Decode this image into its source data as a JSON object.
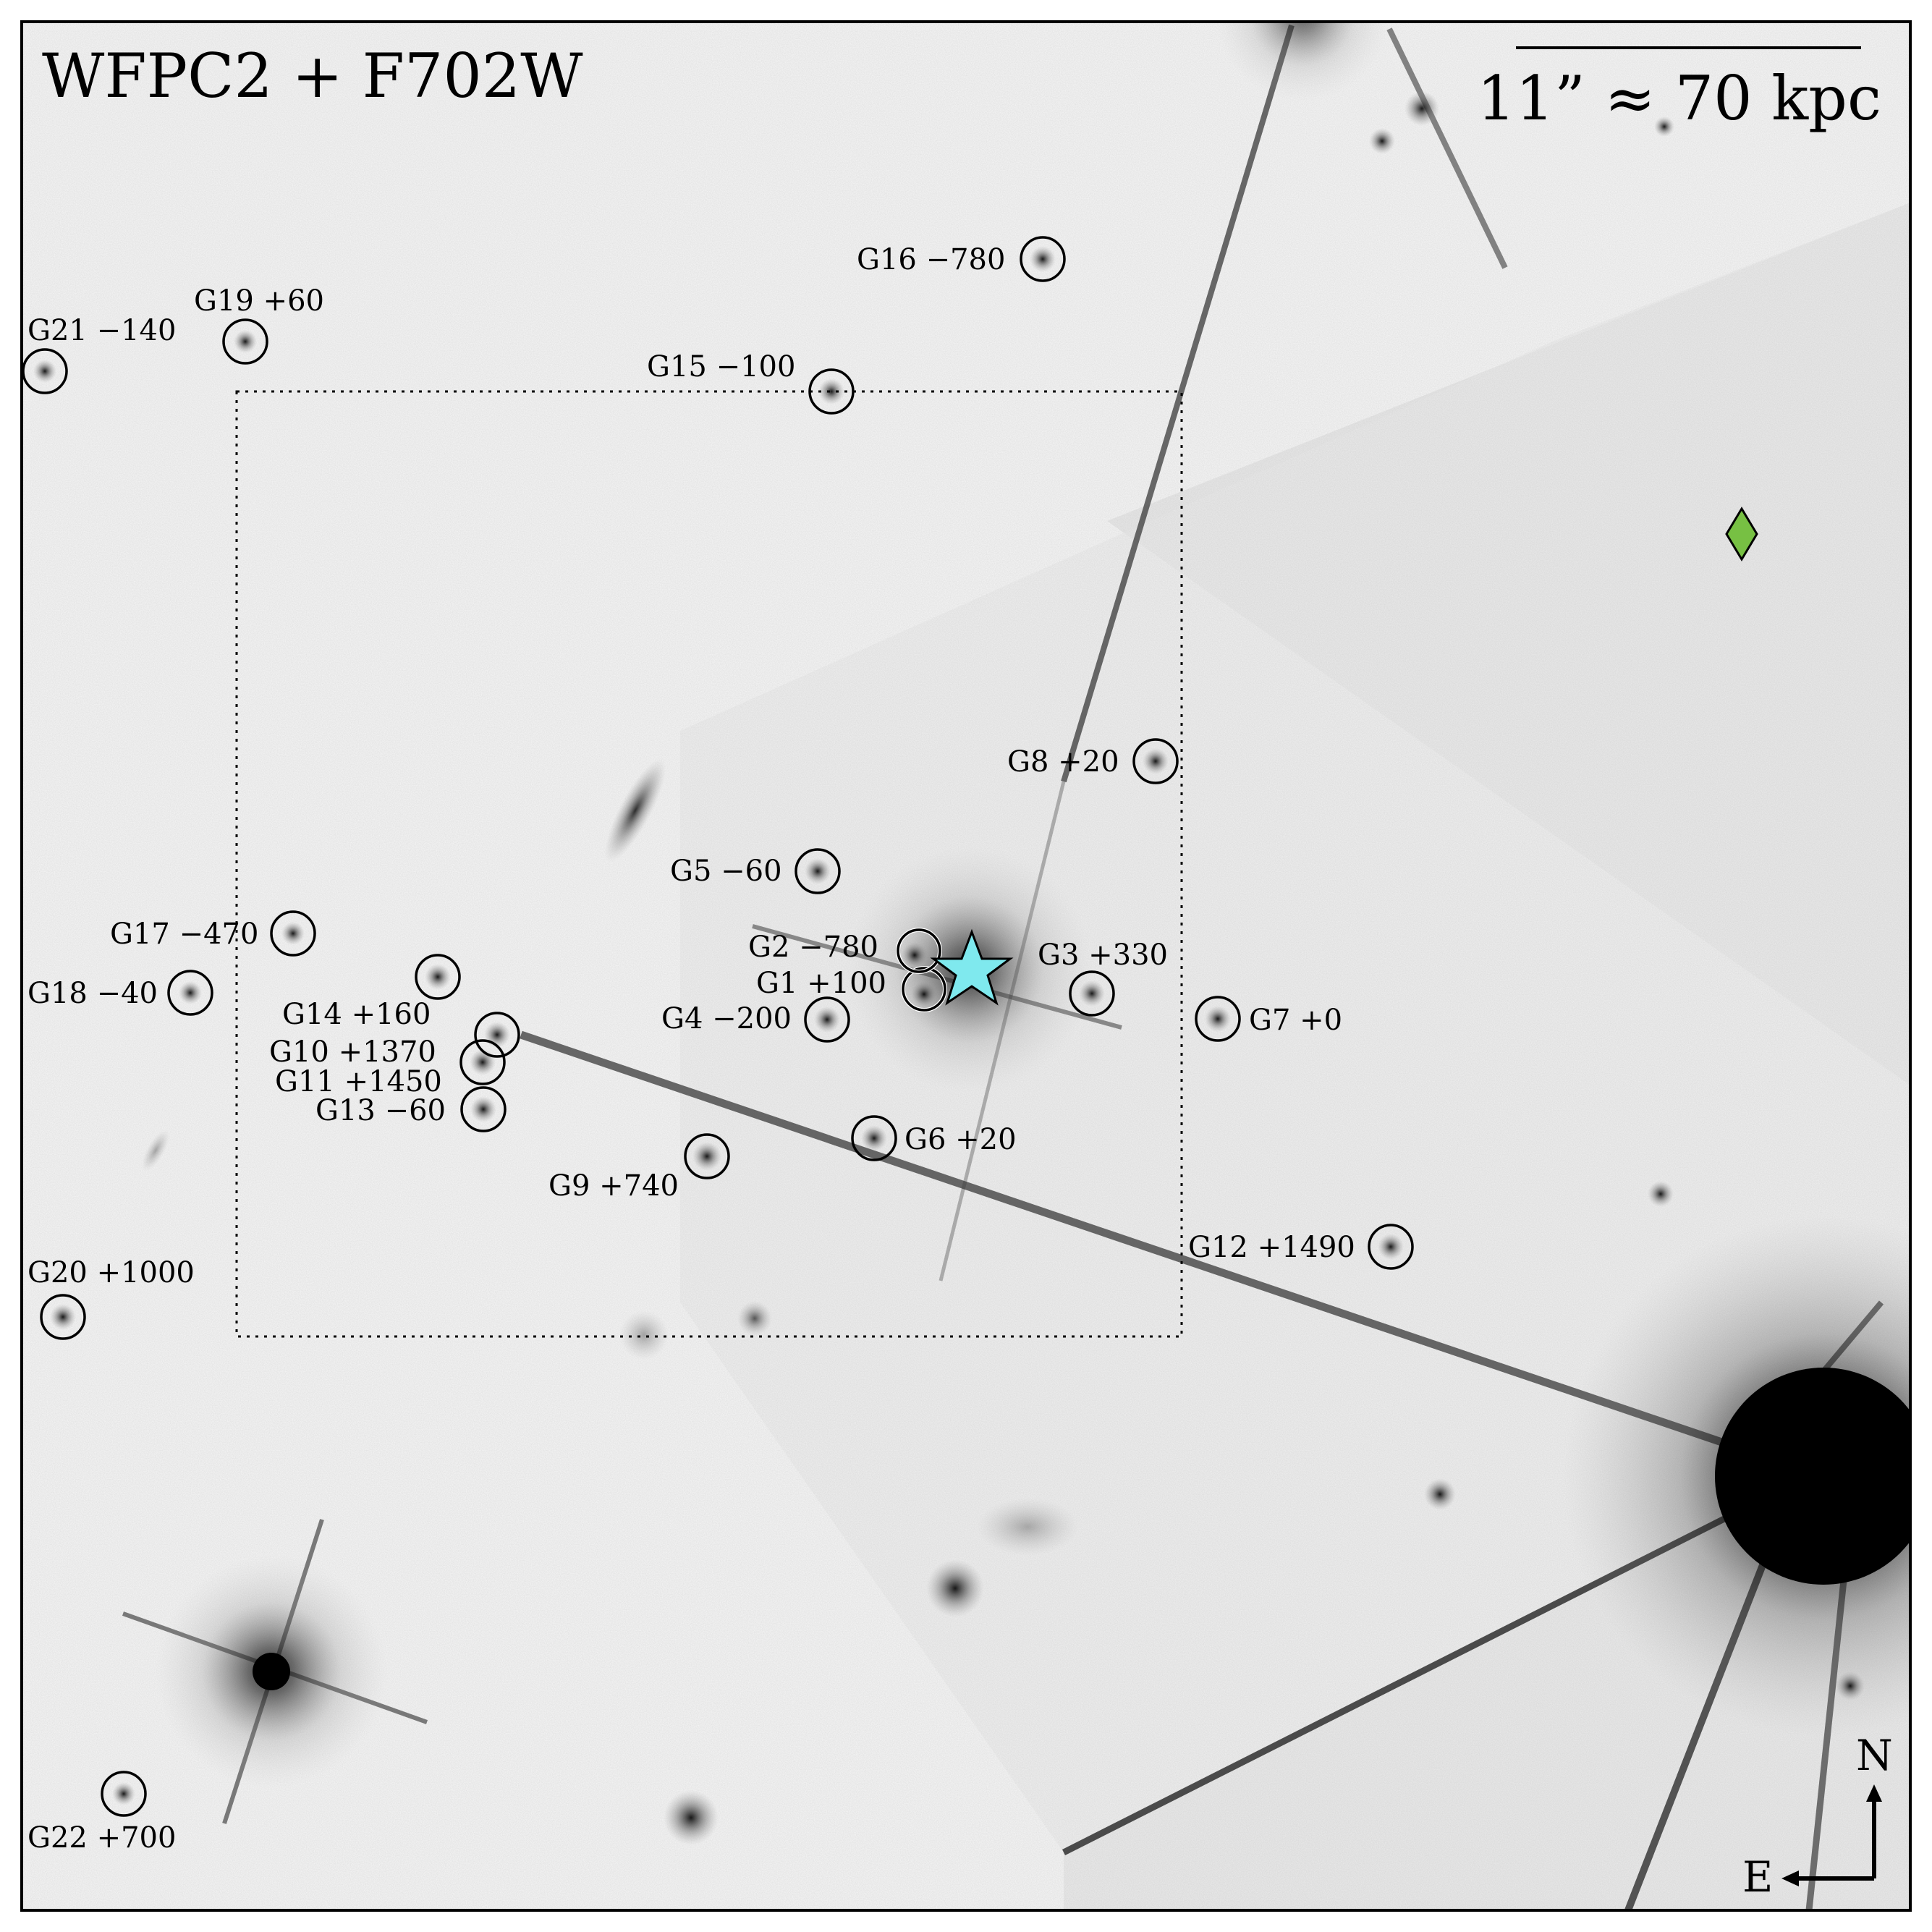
{
  "image": {
    "title": "WFPC2 + F702W",
    "scale_bar_label": "11” ≈ 70 kpc",
    "compass": {
      "north": "N",
      "east": "E"
    },
    "markers": {
      "target_star_color": "#7fe9ee",
      "diamond_color": "#77c043"
    },
    "galaxies": [
      {
        "id": "G1",
        "label": "G1 +100"
      },
      {
        "id": "G2",
        "label": "G2 −780"
      },
      {
        "id": "G3",
        "label": "G3 +330"
      },
      {
        "id": "G4",
        "label": "G4 −200"
      },
      {
        "id": "G5",
        "label": "G5 −60"
      },
      {
        "id": "G6",
        "label": "G6 +20"
      },
      {
        "id": "G7",
        "label": "G7 +0"
      },
      {
        "id": "G8",
        "label": "G8 +20"
      },
      {
        "id": "G9",
        "label": "G9 +740"
      },
      {
        "id": "G10",
        "label": "G10 +1370"
      },
      {
        "id": "G11",
        "label": "G11 +1450"
      },
      {
        "id": "G12",
        "label": "G12 +1490"
      },
      {
        "id": "G13",
        "label": "G13 −60"
      },
      {
        "id": "G14",
        "label": "G14 +160"
      },
      {
        "id": "G15",
        "label": "G15 −100"
      },
      {
        "id": "G16",
        "label": "G16 −780"
      },
      {
        "id": "G17",
        "label": "G17 −470"
      },
      {
        "id": "G18",
        "label": "G18 −40"
      },
      {
        "id": "G19",
        "label": "G19 +60"
      },
      {
        "id": "G20",
        "label": "G20 +1000"
      },
      {
        "id": "G21",
        "label": "G21 −140"
      },
      {
        "id": "G22",
        "label": "G22 +700"
      }
    ]
  }
}
